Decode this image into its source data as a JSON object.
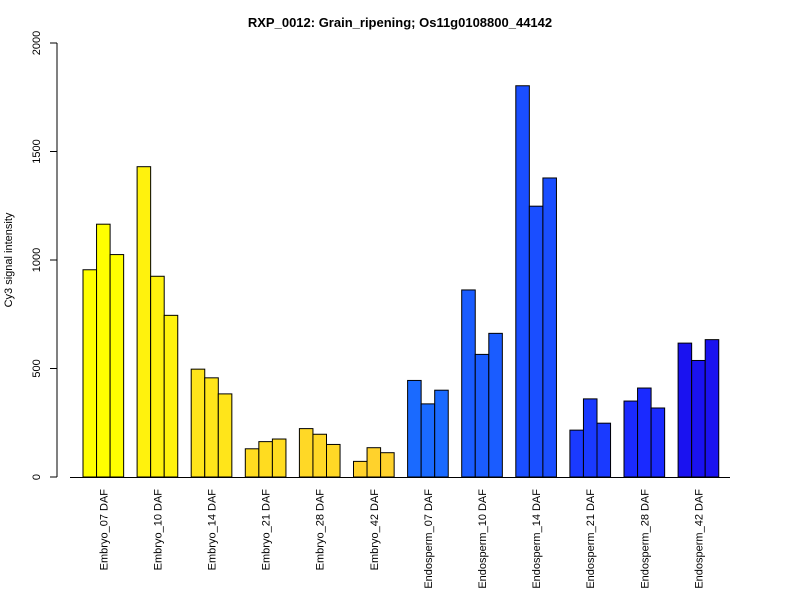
{
  "chart_data": {
    "type": "bar",
    "title": "RXP_0012: Grain_ripening; Os11g0108800_44142",
    "xlabel": "",
    "ylabel": "Cy3 signal intensity",
    "ylim": [
      0,
      2000
    ],
    "yticks": [
      "0",
      "500",
      "1000",
      "1500",
      "2000"
    ],
    "grid": false,
    "legend": "none",
    "groups": [
      {
        "label": "Embryo_07 DAF",
        "color": "#FFFF00",
        "values": [
          955,
          1165,
          1025
        ]
      },
      {
        "label": "Embryo_10 DAF",
        "color": "#FFF20D",
        "values": [
          1430,
          925,
          745
        ]
      },
      {
        "label": "Embryo_14 DAF",
        "color": "#FFE51A",
        "values": [
          497,
          457,
          383
        ]
      },
      {
        "label": "Embryo_21 DAF",
        "color": "#FFDC20",
        "values": [
          130,
          163,
          175
        ]
      },
      {
        "label": "Embryo_28 DAF",
        "color": "#FFD826",
        "values": [
          223,
          197,
          150
        ]
      },
      {
        "label": "Embryo_42 DAF",
        "color": "#FFD22C",
        "values": [
          72,
          135,
          112
        ]
      },
      {
        "label": "Endosperm_07 DAF",
        "color": "#1A6AFF",
        "values": [
          445,
          337,
          400
        ]
      },
      {
        "label": "Endosperm_10 DAF",
        "color": "#1A5CFF",
        "values": [
          862,
          565,
          662
        ]
      },
      {
        "label": "Endosperm_14 DAF",
        "color": "#1A4EFF",
        "values": [
          1803,
          1248,
          1378
        ]
      },
      {
        "label": "Endosperm_21 DAF",
        "color": "#1A3AFF",
        "values": [
          216,
          360,
          248
        ]
      },
      {
        "label": "Endosperm_28 DAF",
        "color": "#1A2AFF",
        "values": [
          350,
          410,
          318
        ]
      },
      {
        "label": "Endosperm_42 DAF",
        "color": "#1A12F0",
        "values": [
          617,
          537,
          633
        ]
      }
    ]
  }
}
